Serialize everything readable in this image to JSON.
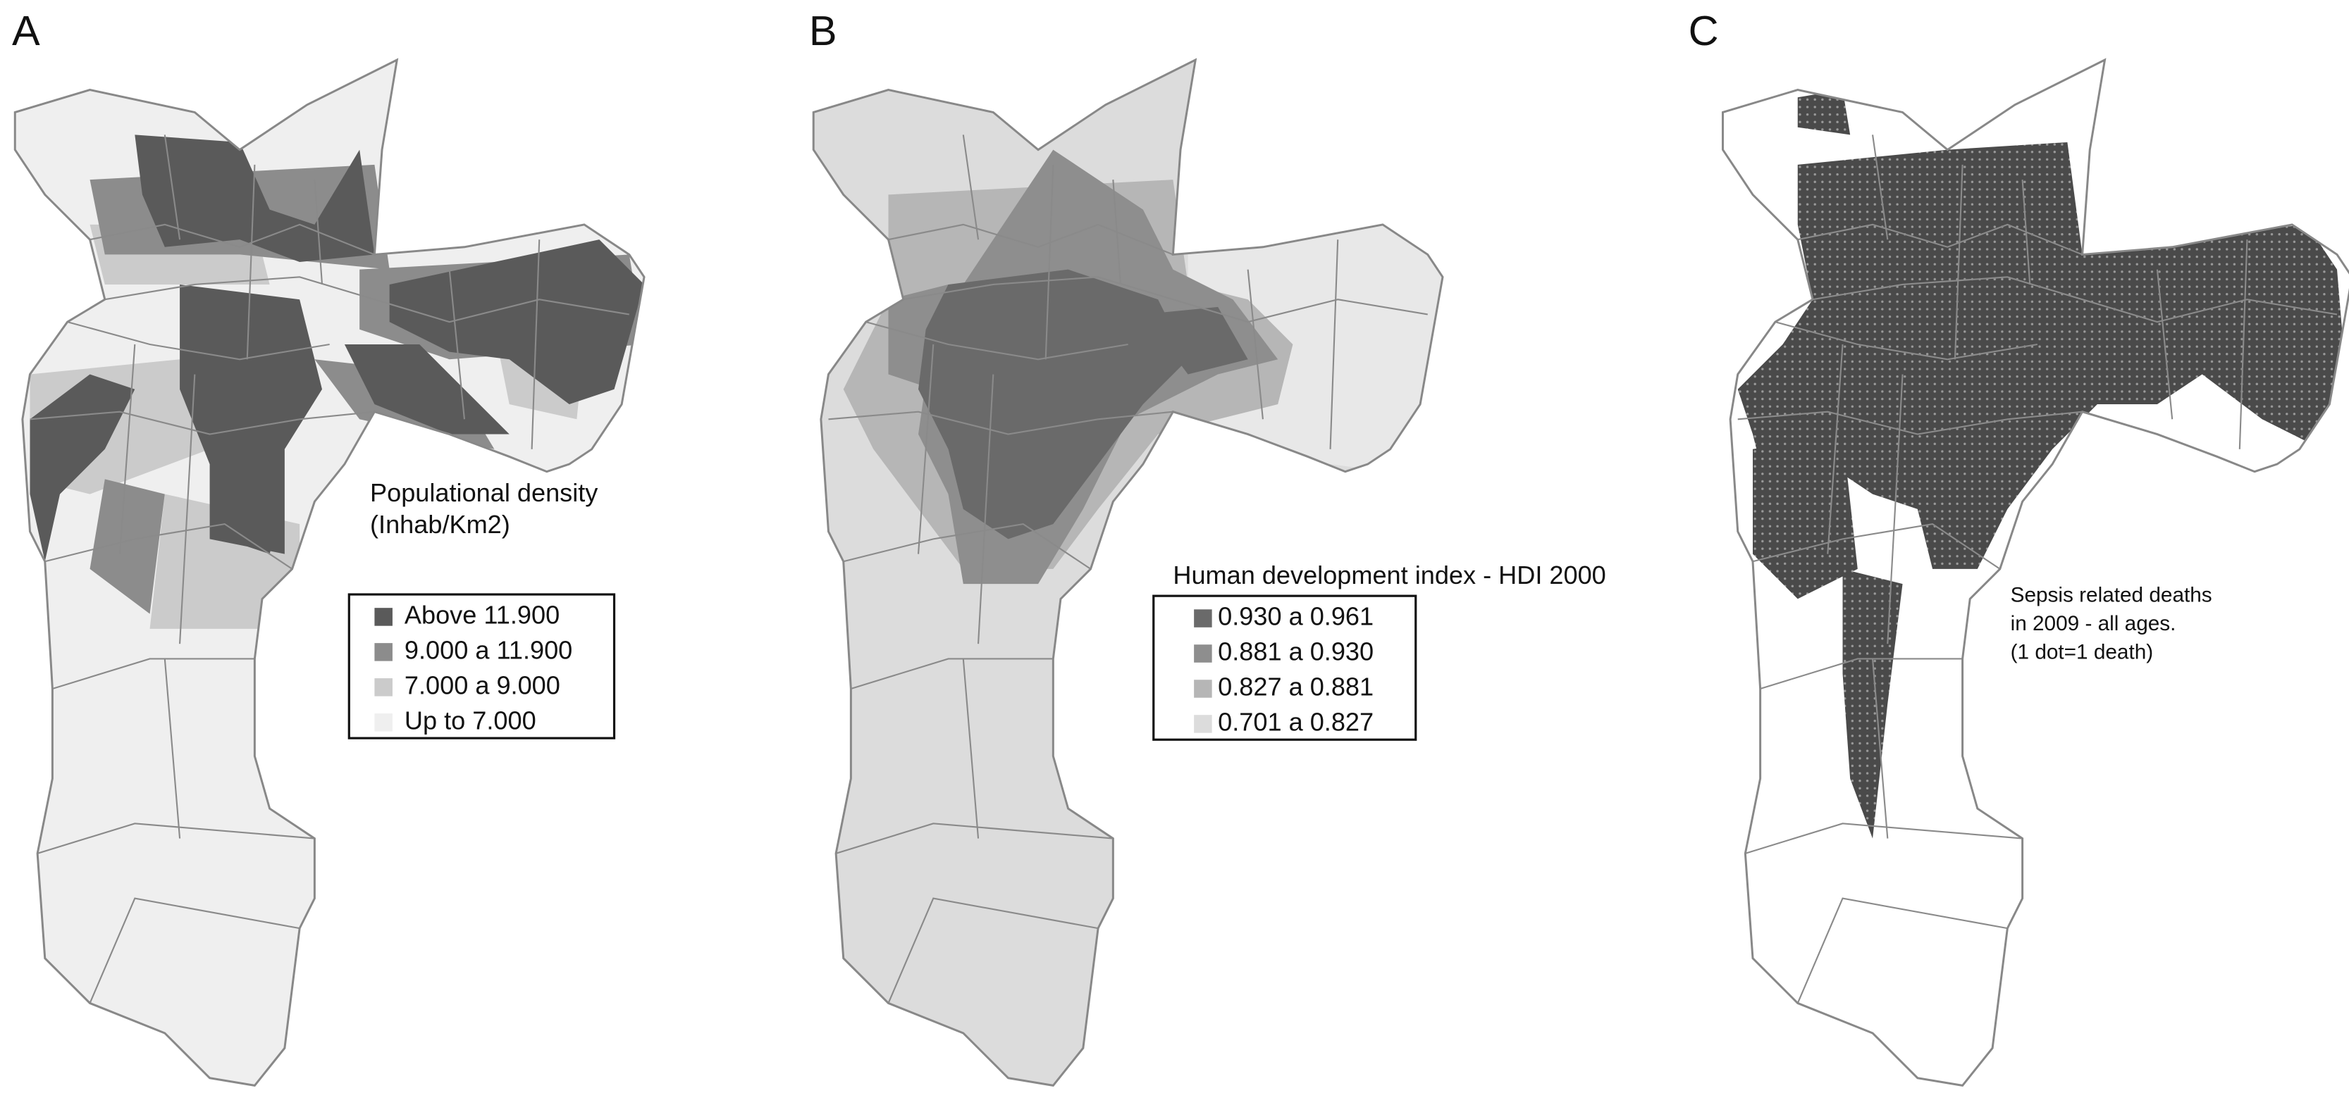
{
  "panels": [
    {
      "label": "A",
      "legend": {
        "title": [
          "Populational density",
          "(Inhab/Km2)"
        ],
        "items": [
          {
            "label": "Above 11.900",
            "color": "#5a5a5a"
          },
          {
            "label": "9.000 a 11.900",
            "color": "#8c8c8c"
          },
          {
            "label": "7.000 a 9.000",
            "color": "#cbcbcb"
          },
          {
            "label": "Up to 7.000",
            "color": "#efefef"
          }
        ]
      }
    },
    {
      "label": "B",
      "legend": {
        "title": [
          "Human development index - HDI 2000"
        ],
        "items": [
          {
            "label": "0.930 a 0.961",
            "color": "#6a6a6a"
          },
          {
            "label": "0.881 a 0.930",
            "color": "#8e8e8e"
          },
          {
            "label": "0.827 a 0.881",
            "color": "#b6b6b6"
          },
          {
            "label": "0.701 a 0.827",
            "color": "#dcdcdc"
          }
        ]
      }
    },
    {
      "label": "C",
      "note": [
        "Sepsis related deaths",
        "in 2009 - all ages.",
        "(1 dot=1 death)"
      ]
    }
  ]
}
